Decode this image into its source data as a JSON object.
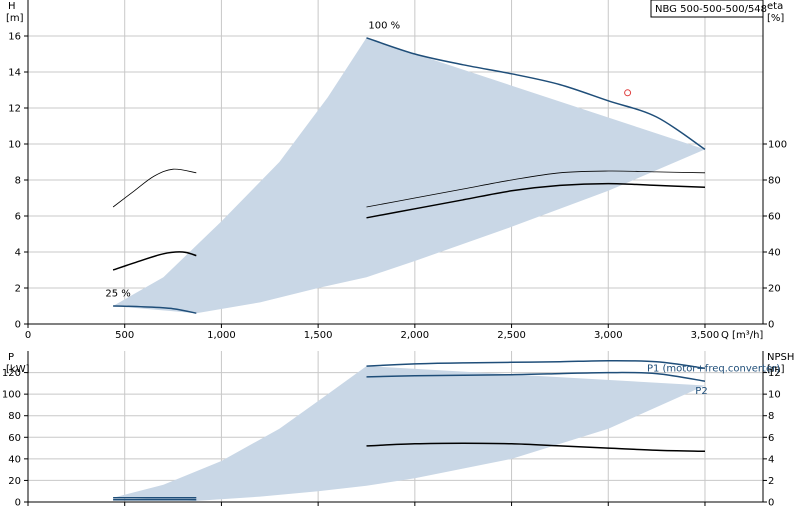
{
  "chart_data": [
    {
      "type": "line",
      "title": "NBG 500-500-500/548",
      "x_unit_label": "Q [m³/h]",
      "xlim": [
        0,
        3800
      ],
      "x_ticks": [
        0,
        500,
        1000,
        1500,
        2000,
        2500,
        3000,
        3500
      ],
      "x_tick_labels": [
        "0",
        "500",
        "1,000",
        "1,500",
        "2,000",
        "2,500",
        "3,000",
        "3,500"
      ],
      "left_axis": {
        "label": "H",
        "unit": "[m]",
        "ylim": [
          0,
          18
        ],
        "ticks": [
          0,
          2,
          4,
          6,
          8,
          10,
          12,
          14,
          16
        ]
      },
      "right_axis": {
        "label": "eta",
        "unit": "[%]",
        "ylim": [
          0,
          180
        ],
        "ticks": [
          0,
          20,
          40,
          60,
          80,
          100
        ]
      },
      "envelope": {
        "upper": [
          [
            440,
            1.0
          ],
          [
            700,
            2.6
          ],
          [
            1000,
            5.7
          ],
          [
            1300,
            9.0
          ],
          [
            1550,
            12.6
          ],
          [
            1750,
            15.9
          ]
        ],
        "lower": [
          [
            870,
            0.6
          ],
          [
            1200,
            1.2
          ],
          [
            1500,
            2.0
          ],
          [
            1750,
            2.6
          ],
          [
            2000,
            3.5
          ],
          [
            2500,
            5.4
          ],
          [
            3000,
            7.4
          ],
          [
            3500,
            9.7
          ]
        ]
      },
      "series": [
        {
          "axis": "left",
          "color": "#1f4e79",
          "width": 1.5,
          "points": [
            [
              1750,
              15.9
            ],
            [
              2000,
              15.0
            ],
            [
              2250,
              14.4
            ],
            [
              2500,
              13.9
            ],
            [
              2750,
              13.3
            ],
            [
              3000,
              12.4
            ],
            [
              3250,
              11.5
            ],
            [
              3500,
              9.7
            ]
          ]
        },
        {
          "axis": "left",
          "color": "#1f4e79",
          "width": 1.5,
          "points": [
            [
              440,
              1.0
            ],
            [
              600,
              0.95
            ],
            [
              750,
              0.85
            ],
            [
              870,
              0.6
            ]
          ]
        },
        {
          "axis": "left",
          "color": "#000000",
          "width": 1.5,
          "points": [
            [
              440,
              3.0
            ],
            [
              550,
              3.4
            ],
            [
              700,
              3.9
            ],
            [
              800,
              4.0
            ],
            [
              870,
              3.8
            ]
          ]
        },
        {
          "axis": "left",
          "color": "#000000",
          "width": 1.5,
          "points": [
            [
              1750,
              5.9
            ],
            [
              2000,
              6.4
            ],
            [
              2250,
              6.9
            ],
            [
              2500,
              7.4
            ],
            [
              2750,
              7.7
            ],
            [
              3000,
              7.8
            ],
            [
              3250,
              7.7
            ],
            [
              3500,
              7.6
            ]
          ]
        },
        {
          "axis": "right",
          "color": "#000000",
          "width": 0.8,
          "points": [
            [
              440,
              65
            ],
            [
              550,
              74
            ],
            [
              650,
              82
            ],
            [
              750,
              86
            ],
            [
              870,
              84
            ]
          ]
        },
        {
          "axis": "right",
          "color": "#000000",
          "width": 0.8,
          "points": [
            [
              1750,
              65
            ],
            [
              2000,
              70
            ],
            [
              2250,
              75
            ],
            [
              2500,
              80
            ],
            [
              2750,
              84
            ],
            [
              3000,
              85
            ],
            [
              3250,
              84.5
            ],
            [
              3500,
              84
            ]
          ]
        }
      ],
      "annotations": [
        {
          "text": "100 %",
          "x": 1760,
          "y": 16.2
        },
        {
          "text": "25 %",
          "x": 400,
          "y": 1.3
        }
      ],
      "marker": {
        "shape": "circle",
        "color": "#e04040",
        "x": 3100,
        "y": 12.4
      }
    },
    {
      "type": "line",
      "xlim": [
        0,
        3800
      ],
      "left_axis": {
        "label": "P",
        "unit": "[kW]",
        "ylim": [
          0,
          140
        ],
        "ticks": [
          0,
          20,
          40,
          60,
          80,
          100,
          120
        ]
      },
      "right_axis": {
        "label": "NPSH",
        "unit": "[m]",
        "ylim": [
          0,
          14
        ],
        "ticks": [
          0,
          2,
          4,
          6,
          8,
          10,
          12
        ]
      },
      "envelope": {
        "upper": [
          [
            440,
            4
          ],
          [
            700,
            16
          ],
          [
            1000,
            38
          ],
          [
            1300,
            68
          ],
          [
            1550,
            100
          ],
          [
            1750,
            126
          ]
        ],
        "lower": [
          [
            870,
            1
          ],
          [
            1200,
            5
          ],
          [
            1500,
            10
          ],
          [
            1750,
            15
          ],
          [
            2000,
            22
          ],
          [
            2500,
            40
          ],
          [
            3000,
            68
          ],
          [
            3500,
            108
          ]
        ]
      },
      "series": [
        {
          "axis": "left",
          "color": "#1f4e79",
          "width": 1.5,
          "name": "P1 (motor+freq.converter)",
          "points": [
            [
              1750,
              126
            ],
            [
              2000,
              128
            ],
            [
              2250,
              129
            ],
            [
              2500,
              129.5
            ],
            [
              2750,
              130
            ],
            [
              3000,
              131
            ],
            [
              3250,
              130
            ],
            [
              3500,
              124
            ]
          ]
        },
        {
          "axis": "left",
          "color": "#1f4e79",
          "width": 1.5,
          "name": "P2",
          "points": [
            [
              1750,
              116
            ],
            [
              2000,
              117
            ],
            [
              2250,
              117.5
            ],
            [
              2500,
              118
            ],
            [
              2750,
              119
            ],
            [
              3000,
              120
            ],
            [
              3250,
              119
            ],
            [
              3500,
              112
            ]
          ]
        },
        {
          "axis": "left",
          "color": "#1f4e79",
          "width": 1.5,
          "points": [
            [
              440,
              4
            ],
            [
              870,
              4
            ]
          ]
        },
        {
          "axis": "left",
          "color": "#1f4e79",
          "width": 1.5,
          "points": [
            [
              440,
              2
            ],
            [
              870,
              2
            ]
          ]
        },
        {
          "axis": "right",
          "color": "#000000",
          "width": 1.5,
          "points": [
            [
              1750,
              5.2
            ],
            [
              2000,
              5.4
            ],
            [
              2250,
              5.45
            ],
            [
              2500,
              5.4
            ],
            [
              2750,
              5.2
            ],
            [
              3000,
              5.0
            ],
            [
              3250,
              4.8
            ],
            [
              3500,
              4.7
            ]
          ]
        }
      ],
      "legend_labels": [
        {
          "text": "P1 (motor+freq.converter)",
          "x": 3200,
          "y": 124
        },
        {
          "text": "P2",
          "x": 3450,
          "y": 103
        }
      ]
    }
  ]
}
